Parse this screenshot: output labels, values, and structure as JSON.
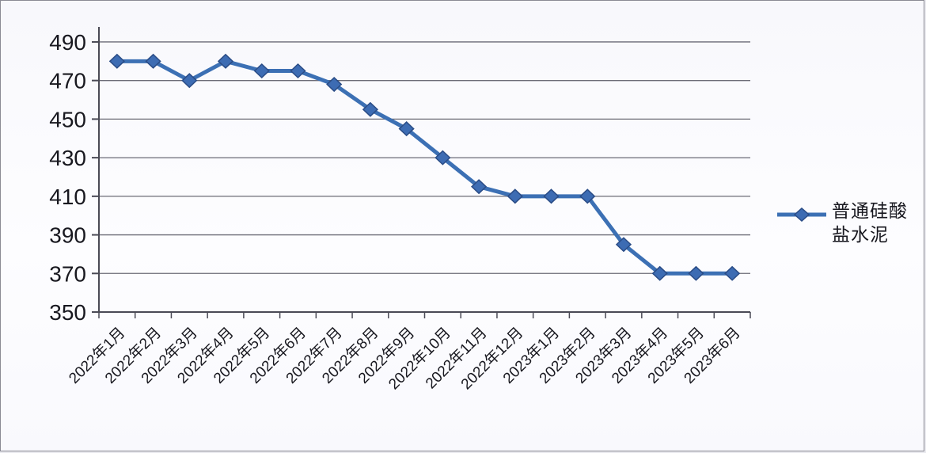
{
  "chart_data": {
    "type": "line",
    "title": "",
    "xlabel": "",
    "ylabel": "",
    "categories": [
      "2022年1月",
      "2022年2月",
      "2022年3月",
      "2022年4月",
      "2022年5月",
      "2022年6月",
      "2022年7月",
      "2022年8月",
      "2022年9月",
      "2022年10月",
      "2022年11月",
      "2022年12月",
      "2023年1月",
      "2023年2月",
      "2023年3月",
      "2023年4月",
      "2023年5月",
      "2023年6月"
    ],
    "series": [
      {
        "name": "普通硅酸盐水泥",
        "values": [
          480,
          480,
          470,
          480,
          475,
          475,
          468,
          455,
          445,
          430,
          415,
          410,
          410,
          410,
          385,
          370,
          370,
          370
        ]
      }
    ],
    "ylim": [
      350,
      497
    ],
    "yticks": [
      350,
      370,
      390,
      410,
      430,
      450,
      470,
      490
    ],
    "grid": true,
    "legend_position": "right",
    "legend_wrap": [
      "普通硅酸",
      "盐水泥"
    ],
    "marker_shape": "diamond",
    "colors": {
      "line": "#3c70b4",
      "marker_fill": "#3d6cb3",
      "marker_stroke": "#2a4c86",
      "grid": "#6b6b76",
      "axis": "#4a4a55",
      "text": "#18181f",
      "background": "#fbfbfd",
      "border": "#8b8b94"
    }
  }
}
